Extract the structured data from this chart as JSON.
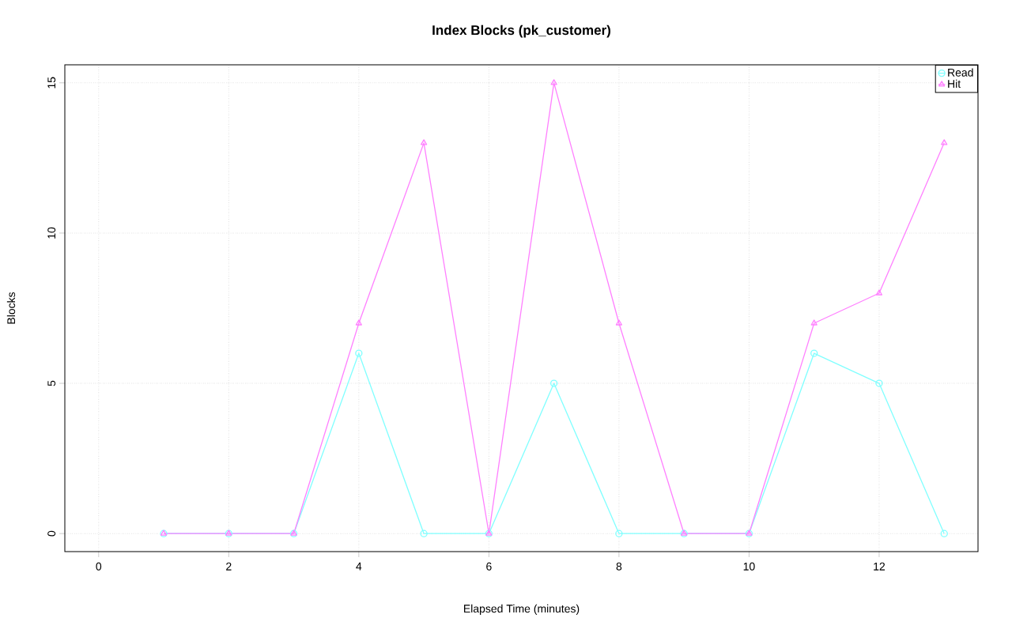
{
  "chart_data": {
    "type": "line",
    "title": "Index Blocks (pk_customer)",
    "xlabel": "Elapsed Time (minutes)",
    "ylabel": "Blocks",
    "x": [
      1,
      2,
      3,
      4,
      5,
      6,
      7,
      8,
      9,
      10,
      11,
      12,
      13
    ],
    "series": [
      {
        "name": "Read",
        "color": "#80ffff",
        "marker": "circle",
        "values": [
          0,
          0,
          0,
          6,
          0,
          0,
          5,
          0,
          0,
          0,
          6,
          5,
          0
        ]
      },
      {
        "name": "Hit",
        "color": "#ff80ff",
        "marker": "triangle",
        "values": [
          0,
          0,
          0,
          7,
          13,
          0,
          15,
          7,
          0,
          0,
          7,
          8,
          13
        ]
      }
    ],
    "xlim": [
      -0.52,
      13.52
    ],
    "ylim": [
      -0.6,
      15.6
    ],
    "xticks": [
      0,
      2,
      4,
      6,
      8,
      10,
      12
    ],
    "yticks": [
      0,
      5,
      10,
      15
    ],
    "grid": true,
    "legend": "top right",
    "line_style": "solid"
  }
}
